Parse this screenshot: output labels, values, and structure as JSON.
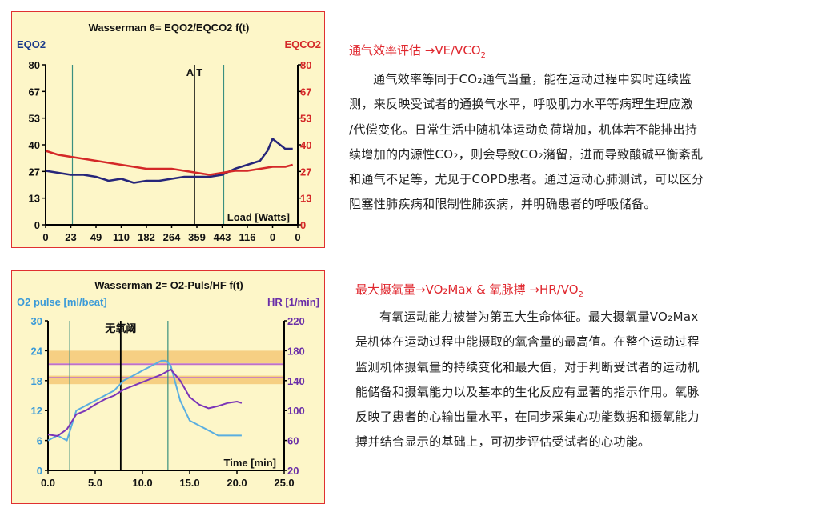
{
  "chart_data": [
    {
      "type": "line",
      "title": "Wasserman 6= EQO2/EQCO2 f(t)",
      "ylabel_left": "EQO2",
      "ylabel_right": "EQCO2",
      "xlabel": "Load [Watts]",
      "marker_label": "A T",
      "y_ticks": [
        "80",
        "67",
        "53",
        "40",
        "27",
        "13",
        "0"
      ],
      "y_ticks_right": [
        "80",
        "67",
        "53",
        "40",
        "27",
        "13",
        "0"
      ],
      "x_ticks": [
        "0",
        "23",
        "49",
        "110",
        "182",
        "264",
        "359",
        "443",
        "116",
        "0",
        "0"
      ],
      "ylim": [
        0,
        80
      ],
      "colors": {
        "EQO2": "#26267a",
        "EQCO2": "#d42828",
        "gridline": "#3a8f80"
      },
      "series": [
        {
          "name": "EQO2",
          "x": [
            0,
            0.5,
            1,
            1.5,
            2,
            2.5,
            3,
            3.5,
            4,
            4.5,
            5,
            5.5,
            6,
            6.5,
            7,
            7.5,
            8,
            8.5,
            8.8,
            9,
            9.3,
            9.5,
            9.8
          ],
          "values": [
            27,
            26,
            25,
            25,
            24,
            22,
            23,
            21,
            22,
            22,
            23,
            24,
            24,
            24,
            25,
            28,
            30,
            32,
            37,
            43,
            40,
            38,
            38
          ]
        },
        {
          "name": "EQCO2",
          "x": [
            0,
            0.5,
            1,
            1.5,
            2,
            2.5,
            3,
            3.5,
            4,
            4.5,
            5,
            5.5,
            6,
            6.5,
            7,
            7.5,
            8,
            8.5,
            9,
            9.5,
            9.8
          ],
          "values": [
            37,
            35,
            34,
            33,
            32,
            31,
            30,
            29,
            28,
            28,
            28,
            27,
            26,
            25,
            26,
            27,
            27,
            28,
            29,
            29,
            30
          ]
        }
      ]
    },
    {
      "type": "line",
      "title": "Wasserman 2= O2-Puls/HF f(t)",
      "ylabel_left": "O2 pulse [ml/beat]",
      "ylabel_right": "HR [1/min]",
      "xlabel": "Time [min]",
      "marker_label": "无氧阈",
      "y_ticks": [
        "30",
        "24",
        "18",
        "12",
        "6",
        "0"
      ],
      "y_ticks_right": [
        "220",
        "180",
        "140",
        "100",
        "60",
        "20"
      ],
      "x_ticks": [
        "0.0",
        "5.0",
        "10.0",
        "15.0",
        "20.0",
        "25.0"
      ],
      "xlim": [
        0,
        25
      ],
      "ylim": [
        0,
        30
      ],
      "ylim_right": [
        20,
        220
      ],
      "colors": {
        "O2 pulse": "#5aaee0",
        "HR": "#7b35b8",
        "band": "#f5c877",
        "band_line": "#c070c8",
        "gridline": "#3a8f80"
      },
      "series": [
        {
          "name": "O2 pulse",
          "x": [
            0,
            1,
            2,
            2.5,
            3,
            4,
            5,
            6,
            7,
            8,
            9,
            10,
            11,
            12,
            12.5,
            13,
            14,
            15,
            16,
            17,
            18,
            19,
            20,
            20.5
          ],
          "values": [
            6,
            7,
            6,
            9,
            12,
            13,
            14,
            15,
            16,
            18,
            19,
            20,
            21,
            22,
            22,
            21,
            14,
            10,
            9,
            8,
            7,
            7,
            7,
            7
          ]
        },
        {
          "name": "HR",
          "x": [
            0,
            1,
            2,
            3,
            4,
            5,
            6,
            7,
            8,
            9,
            10,
            11,
            12,
            13,
            14,
            15,
            16,
            17,
            18,
            19,
            20,
            20.5
          ],
          "values": [
            68,
            66,
            75,
            95,
            100,
            108,
            115,
            120,
            128,
            133,
            138,
            143,
            148,
            155,
            140,
            118,
            108,
            103,
            106,
            110,
            112,
            110
          ]
        }
      ]
    }
  ],
  "sections": [
    {
      "heading": "通气效率评估 →VE/VCO",
      "heading_sub": "2",
      "paragraph_lines": [
        "通气效率等同于CO₂通气当量，能在运动过程中实时连续监",
        "测，来反映受试者的通换气水平，呼吸肌力水平等病理生理应激",
        "/代偿变化。日常生活中随机体运动负荷增加，机体若不能排出持",
        "续增加的内源性CO₂，则会导致CO₂潴留，进而导致酸碱平衡紊乱",
        "和通气不足等，尤见于COPD患者。通过运动心肺测试，可以区分",
        "阻塞性肺疾病和限制性肺疾病，并明确患者的呼吸储备。"
      ]
    },
    {
      "heading": "最大摄氧量→VO₂Max & 氧脉搏 →HR/VO",
      "heading_sub": "2",
      "paragraph_lines": [
        "有氧运动能力被誉为第五大生命体征。最大摄氧量VO₂Max",
        "是机体在运动过程中能摄取的氧含量的最高值。在整个运动过程",
        "监测机体摄氧量的持续变化和最大值，对于判断受试者的运动机",
        "能储备和摄氧能力以及基本的生化反应有显著的指示作用。氧脉",
        "反映了患者的心输出量水平，在同步采集心功能数据和摄氧能力",
        "搏并结合显示的基础上，可初步评估受试者的心功能。"
      ]
    }
  ]
}
